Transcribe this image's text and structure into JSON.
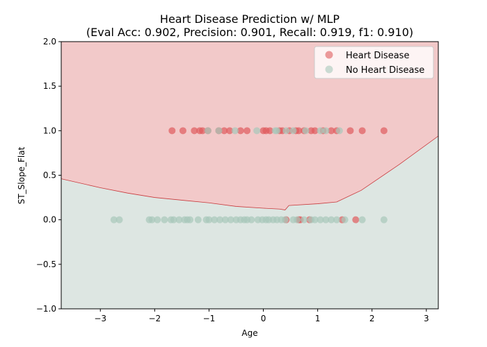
{
  "chart_data": {
    "type": "scatter",
    "title": "Heart Disease Prediction w/ MLP",
    "subtitle": "(Eval Acc: 0.902, Precision: 0.901, Recall: 0.919, f1: 0.910)",
    "xlabel": "Age",
    "ylabel": "ST_Slope_Flat",
    "xlim": [
      -3.72,
      3.22
    ],
    "ylim": [
      -1.0,
      2.0
    ],
    "xticks": [
      -3,
      -2,
      -1,
      0,
      1,
      2,
      3
    ],
    "xtick_labels": [
      "−3",
      "−2",
      "−1",
      "0",
      "1",
      "2",
      "3"
    ],
    "yticks": [
      -1.0,
      -0.5,
      0.0,
      0.5,
      1.0,
      1.5,
      2.0
    ],
    "ytick_labels": [
      "−1.0",
      "−0.5",
      "0.0",
      "0.5",
      "1.0",
      "1.5",
      "2.0"
    ],
    "legend_position": "top-right",
    "grid": false,
    "decision_boundary": {
      "x": [
        -3.72,
        -3.0,
        -2.5,
        -2.0,
        -1.5,
        -1.0,
        -0.5,
        0.0,
        0.3,
        0.4,
        0.47,
        1.0,
        1.35,
        1.8,
        2.5,
        3.22
      ],
      "y": [
        0.46,
        0.36,
        0.3,
        0.25,
        0.22,
        0.19,
        0.15,
        0.13,
        0.12,
        0.11,
        0.16,
        0.18,
        0.2,
        0.33,
        0.62,
        0.94
      ],
      "upper_region_class": "Heart Disease",
      "lower_region_class": "No Heart Disease"
    },
    "series": [
      {
        "name": "Heart Disease",
        "color": "#e05b5e",
        "region_color": "#f2c9c9",
        "points": [
          [
            -1.68,
            1
          ],
          [
            -1.48,
            1
          ],
          [
            -1.27,
            1
          ],
          [
            -1.17,
            1
          ],
          [
            -1.12,
            1
          ],
          [
            -1.02,
            1
          ],
          [
            -0.82,
            1
          ],
          [
            -0.72,
            1
          ],
          [
            -0.62,
            1
          ],
          [
            -0.42,
            1
          ],
          [
            -0.3,
            1
          ],
          [
            0.0,
            1
          ],
          [
            0.05,
            1
          ],
          [
            0.12,
            1
          ],
          [
            0.3,
            1
          ],
          [
            0.35,
            1
          ],
          [
            0.48,
            1
          ],
          [
            0.6,
            1
          ],
          [
            0.65,
            1
          ],
          [
            0.75,
            1
          ],
          [
            0.88,
            1
          ],
          [
            0.95,
            1
          ],
          [
            1.1,
            1
          ],
          [
            1.25,
            1
          ],
          [
            1.35,
            1
          ],
          [
            1.6,
            1
          ],
          [
            1.82,
            1
          ],
          [
            2.22,
            1
          ],
          [
            0.42,
            0
          ],
          [
            0.65,
            0
          ],
          [
            0.68,
            0
          ],
          [
            0.85,
            0
          ],
          [
            1.45,
            0
          ],
          [
            1.7,
            0
          ]
        ]
      },
      {
        "name": "No Heart Disease",
        "color": "#a8c8bb",
        "region_color": "#dde6e2",
        "points": [
          [
            -1.02,
            1
          ],
          [
            -0.82,
            1
          ],
          [
            -0.52,
            1
          ],
          [
            -0.12,
            1
          ],
          [
            0.22,
            1
          ],
          [
            0.25,
            1
          ],
          [
            0.42,
            1
          ],
          [
            0.55,
            1
          ],
          [
            0.78,
            1
          ],
          [
            1.05,
            1
          ],
          [
            1.15,
            1
          ],
          [
            1.4,
            1
          ],
          [
            -2.75,
            0
          ],
          [
            -2.65,
            0
          ],
          [
            -2.1,
            0
          ],
          [
            -2.05,
            0
          ],
          [
            -1.95,
            0
          ],
          [
            -1.82,
            0
          ],
          [
            -1.7,
            0
          ],
          [
            -1.65,
            0
          ],
          [
            -1.55,
            0
          ],
          [
            -1.45,
            0
          ],
          [
            -1.4,
            0
          ],
          [
            -1.35,
            0
          ],
          [
            -1.2,
            0
          ],
          [
            -1.05,
            0
          ],
          [
            -1.0,
            0
          ],
          [
            -0.9,
            0
          ],
          [
            -0.8,
            0
          ],
          [
            -0.7,
            0
          ],
          [
            -0.6,
            0
          ],
          [
            -0.5,
            0
          ],
          [
            -0.42,
            0
          ],
          [
            -0.35,
            0
          ],
          [
            -0.3,
            0
          ],
          [
            -0.22,
            0
          ],
          [
            -0.1,
            0
          ],
          [
            -0.02,
            0
          ],
          [
            0.05,
            0
          ],
          [
            0.1,
            0
          ],
          [
            0.18,
            0
          ],
          [
            0.25,
            0
          ],
          [
            0.33,
            0
          ],
          [
            0.4,
            0
          ],
          [
            0.55,
            0
          ],
          [
            0.62,
            0
          ],
          [
            0.75,
            0
          ],
          [
            0.88,
            0
          ],
          [
            0.95,
            0
          ],
          [
            1.05,
            0
          ],
          [
            1.15,
            0
          ],
          [
            1.25,
            0
          ],
          [
            1.35,
            0
          ],
          [
            1.5,
            0
          ],
          [
            1.82,
            0
          ],
          [
            2.22,
            0
          ]
        ]
      }
    ]
  }
}
